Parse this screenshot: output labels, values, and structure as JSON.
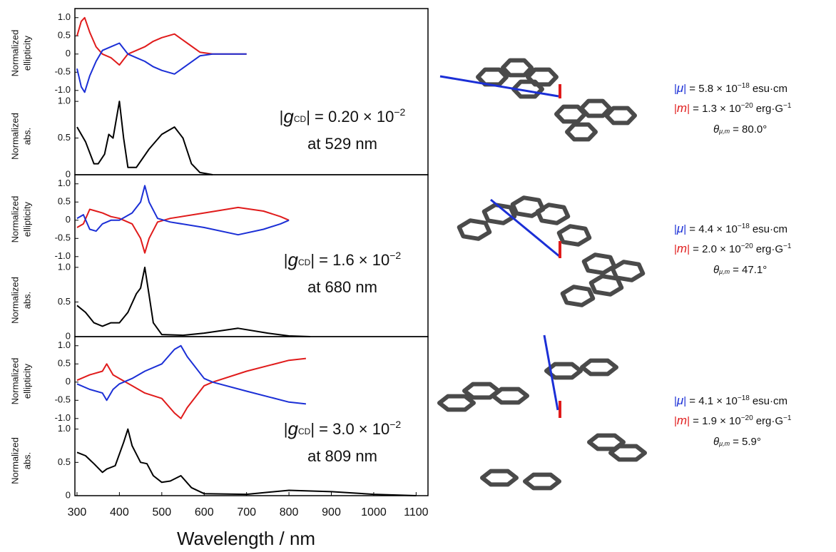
{
  "chart_data": [
    {
      "type": "line",
      "xlim": [
        295,
        1128
      ],
      "annotation": {
        "open": "|",
        "symbol": "g",
        "subscript": "CD",
        "text": "| = 0.20 × 10",
        "exponent": "−2",
        "line2": "at 529 nm"
      },
      "cd": {
        "ylabel": [
          "Normalized",
          "ellipticity"
        ],
        "ylim": [
          -1.2,
          1.25
        ],
        "yticks": [
          {
            "value": 1,
            "label": "1.0"
          },
          0.5,
          0,
          -0.5,
          {
            "value": -1,
            "label": "-1.0"
          }
        ],
        "x": [
          300,
          310,
          318,
          330,
          345,
          360,
          380,
          400,
          410,
          420,
          440,
          460,
          480,
          500,
          530,
          560,
          590,
          620,
          660,
          700
        ],
        "series": [
          {
            "color": "#e01b1b",
            "values": [
              0.5,
              0.9,
              1.0,
              0.6,
              0.2,
              0,
              -0.1,
              -0.3,
              -0.15,
              0,
              0.1,
              0.2,
              0.35,
              0.45,
              0.55,
              0.3,
              0.05,
              0,
              0,
              0
            ]
          },
          {
            "color": "#1b2fd6",
            "values": [
              -0.4,
              -0.9,
              -1.05,
              -0.6,
              -0.2,
              0.1,
              0.2,
              0.3,
              0.15,
              0,
              -0.1,
              -0.2,
              -0.35,
              -0.45,
              -0.55,
              -0.3,
              -0.05,
              0,
              0,
              0
            ]
          }
        ]
      },
      "abs": {
        "ylabel": [
          "Normalized",
          "abs."
        ],
        "ylim": [
          0,
          1.05
        ],
        "yticks": [
          0,
          0.5,
          {
            "value": 1,
            "label": "1.0"
          }
        ],
        "x": [
          300,
          320,
          340,
          350,
          365,
          375,
          385,
          400,
          410,
          420,
          440,
          470,
          500,
          530,
          550,
          570,
          590,
          620
        ],
        "series": [
          {
            "color": "#000000",
            "values": [
              0.65,
              0.45,
              0.15,
              0.15,
              0.28,
              0.55,
              0.5,
              1.0,
              0.5,
              0.1,
              0.1,
              0.35,
              0.55,
              0.65,
              0.5,
              0.15,
              0.03,
              0
            ]
          }
        ]
      }
    },
    {
      "type": "line",
      "xlim": [
        295,
        1128
      ],
      "annotation": {
        "open": "|",
        "symbol": "g",
        "subscript": "CD",
        "text": "| = 1.6 × 10",
        "exponent": "−2",
        "line2": "at 680 nm"
      },
      "cd": {
        "ylabel": [
          "Normalized",
          "ellipticity"
        ],
        "ylim": [
          -1.2,
          1.25
        ],
        "yticks": [
          {
            "value": 1,
            "label": "1.0"
          },
          0.5,
          0,
          -0.5,
          {
            "value": -1,
            "label": "-1.0"
          }
        ],
        "x": [
          300,
          315,
          330,
          345,
          360,
          380,
          400,
          430,
          450,
          460,
          470,
          490,
          520,
          600,
          680,
          740,
          780,
          800
        ],
        "series": [
          {
            "color": "#e01b1b",
            "values": [
              -0.2,
              -0.1,
              0.3,
              0.25,
              0.2,
              0.1,
              0.05,
              -0.1,
              -0.5,
              -0.9,
              -0.5,
              -0.05,
              0.05,
              0.2,
              0.35,
              0.25,
              0.1,
              0
            ]
          },
          {
            "color": "#1b2fd6",
            "values": [
              0.05,
              0.15,
              -0.25,
              -0.3,
              -0.1,
              0,
              0,
              0.2,
              0.5,
              0.95,
              0.5,
              0.05,
              -0.05,
              -0.2,
              -0.4,
              -0.25,
              -0.1,
              0
            ]
          }
        ]
      },
      "abs": {
        "ylabel": [
          "Normalized",
          "abs."
        ],
        "ylim": [
          0,
          1.05
        ],
        "yticks": [
          0,
          0.5,
          {
            "value": 1,
            "label": "1.0"
          }
        ],
        "x": [
          300,
          320,
          340,
          360,
          380,
          400,
          420,
          440,
          450,
          460,
          470,
          480,
          500,
          550,
          600,
          680,
          750,
          800,
          850
        ],
        "series": [
          {
            "color": "#000000",
            "values": [
              0.45,
              0.35,
              0.2,
              0.15,
              0.2,
              0.2,
              0.35,
              0.62,
              0.7,
              1.0,
              0.6,
              0.2,
              0.03,
              0.02,
              0.05,
              0.12,
              0.05,
              0.01,
              0
            ]
          }
        ]
      }
    },
    {
      "type": "line",
      "xlim": [
        295,
        1128
      ],
      "xticks": [
        300,
        400,
        500,
        600,
        700,
        800,
        900,
        1000,
        1100
      ],
      "xlabel": "Wavelength / nm",
      "annotation": {
        "open": "|",
        "symbol": "g",
        "subscript": "CD",
        "text": "| = 3.0 × 10",
        "exponent": "−2",
        "line2": "at 809 nm"
      },
      "cd": {
        "ylabel": [
          "Normalized",
          "ellipticity"
        ],
        "ylim": [
          -1.2,
          1.25
        ],
        "yticks": [
          {
            "value": 1,
            "label": "1.0"
          },
          0.5,
          0,
          -0.5,
          {
            "value": -1,
            "label": "-1.0"
          }
        ],
        "x": [
          300,
          330,
          360,
          370,
          385,
          400,
          430,
          460,
          500,
          530,
          545,
          560,
          600,
          620,
          700,
          800,
          840
        ],
        "series": [
          {
            "color": "#e01b1b",
            "values": [
              0.05,
              0.2,
              0.3,
              0.5,
              0.2,
              0.1,
              -0.1,
              -0.3,
              -0.45,
              -0.85,
              -1.0,
              -0.7,
              -0.1,
              0,
              0.3,
              0.6,
              0.65
            ]
          },
          {
            "color": "#1b2fd6",
            "values": [
              -0.05,
              -0.2,
              -0.3,
              -0.5,
              -0.2,
              -0.05,
              0.1,
              0.3,
              0.5,
              0.9,
              1.0,
              0.7,
              0.1,
              0,
              -0.25,
              -0.55,
              -0.6
            ]
          }
        ]
      },
      "abs": {
        "ylabel": [
          "Normalized",
          "abs."
        ],
        "ylim": [
          0,
          1.05
        ],
        "yticks": [
          0,
          0.5,
          {
            "value": 1,
            "label": "1.0"
          }
        ],
        "x": [
          300,
          320,
          340,
          360,
          370,
          390,
          410,
          420,
          430,
          450,
          465,
          480,
          500,
          520,
          545,
          570,
          600,
          700,
          800,
          900,
          1000,
          1100
        ],
        "series": [
          {
            "color": "#000000",
            "values": [
              0.65,
              0.6,
              0.48,
              0.35,
              0.4,
              0.45,
              0.8,
              1.0,
              0.75,
              0.5,
              0.48,
              0.3,
              0.2,
              0.22,
              0.3,
              0.12,
              0.03,
              0.02,
              0.08,
              0.06,
              0.02,
              0
            ]
          }
        ]
      }
    }
  ],
  "moments": [
    {
      "mu": {
        "open": "|",
        "symbol": "μ",
        "text": "| = 5.8 × 10",
        "exp": "−18",
        "unit": "esu·cm"
      },
      "m": {
        "open": "|",
        "symbol": "m",
        "text": "| = 1.3 × 10",
        "exp": "−20",
        "unit": "erg·G",
        "unit_exp": "−1"
      },
      "theta": {
        "symbol": "θ",
        "sub": "μ,m",
        "text": "= 80.0°"
      }
    },
    {
      "mu": {
        "open": "|",
        "symbol": "μ",
        "text": "| = 4.4 × 10",
        "exp": "−18",
        "unit": "esu·cm"
      },
      "m": {
        "open": "|",
        "symbol": "m",
        "text": "| = 2.0 × 10",
        "exp": "−20",
        "unit": "erg·G",
        "unit_exp": "−1"
      },
      "theta": {
        "symbol": "θ",
        "sub": "μ,m",
        "text": "= 47.1°"
      }
    },
    {
      "mu": {
        "open": "|",
        "symbol": "μ",
        "text": "| = 4.1 × 10",
        "exp": "−18",
        "unit": "esu·cm"
      },
      "m": {
        "open": "|",
        "symbol": "m",
        "text": "| = 1.9 × 10",
        "exp": "−20",
        "unit": "erg·G",
        "unit_exp": "−1"
      },
      "theta": {
        "symbol": "θ",
        "sub": "μ,m",
        "text": "= 5.9°"
      }
    }
  ]
}
